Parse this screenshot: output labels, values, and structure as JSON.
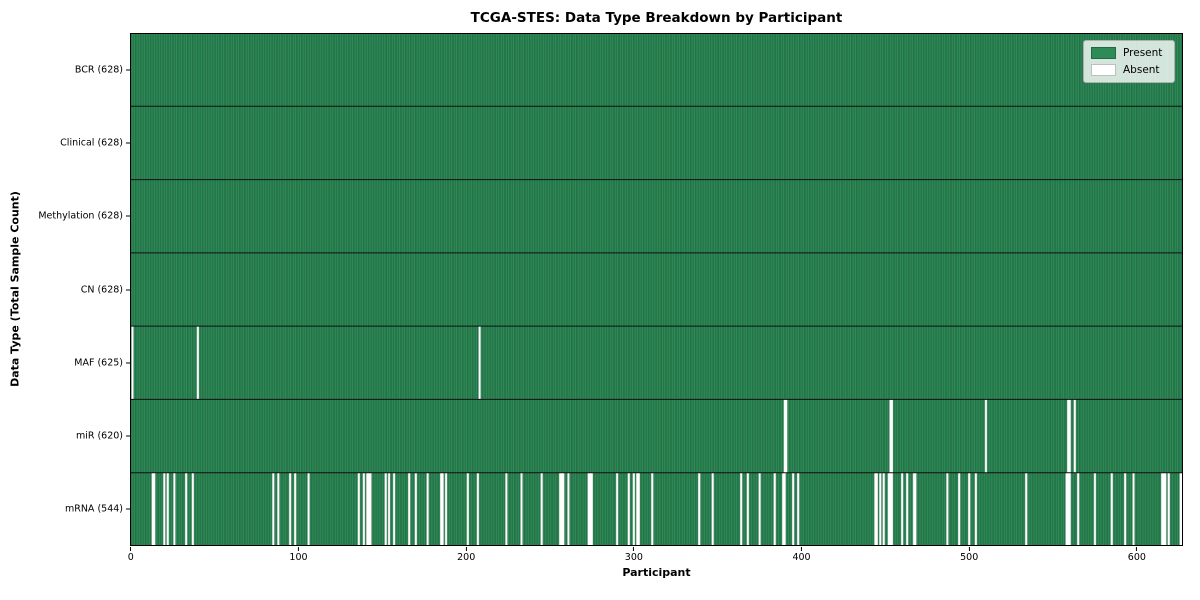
{
  "chart_data": {
    "type": "heatmap",
    "title": "TCGA-STES: Data Type Breakdown by Participant",
    "xlabel": "Participant",
    "ylabel": "Data Type (Total Sample Count)",
    "n_participants": 628,
    "x_ticks": [
      0,
      100,
      200,
      300,
      400,
      500,
      600
    ],
    "grid": false,
    "legend": {
      "position": "upper-right",
      "entries": [
        {
          "label": "Present",
          "color": "#2e8b57"
        },
        {
          "label": "Absent",
          "color": "#ffffff"
        }
      ]
    },
    "colors": {
      "present": "#2e8b57",
      "present_edge": "#1b5e3b",
      "absent": "#ffffff",
      "absent_edge": "#c8c8c8",
      "row_separator": "#111111",
      "plot_border": "#000000"
    },
    "rows": [
      {
        "name": "BCR",
        "total": 628,
        "display": "BCR (628)",
        "absent": []
      },
      {
        "name": "Clinical",
        "total": 628,
        "display": "Clinical (628)",
        "absent": []
      },
      {
        "name": "Methylation",
        "total": 628,
        "display": "Methylation (628)",
        "absent": []
      },
      {
        "name": "CN",
        "total": 628,
        "display": "CN (628)",
        "absent": []
      },
      {
        "name": "MAF",
        "total": 625,
        "display": "MAF (625)",
        "absent": [
          1,
          40,
          208
        ]
      },
      {
        "name": "miR",
        "total": 620,
        "display": "miR (620)",
        "absent": [
          390,
          391,
          453,
          454,
          510,
          559,
          560,
          563
        ]
      },
      {
        "name": "mRNA",
        "total": 544,
        "display": "mRNA (544)",
        "absent": [
          13,
          14,
          20,
          22,
          26,
          33,
          37,
          85,
          88,
          95,
          98,
          106,
          136,
          139,
          141,
          142,
          143,
          152,
          154,
          157,
          166,
          170,
          177,
          185,
          186,
          188,
          201,
          207,
          224,
          233,
          245,
          256,
          257,
          258,
          261,
          273,
          274,
          275,
          290,
          297,
          300,
          302,
          303,
          311,
          339,
          347,
          364,
          368,
          375,
          384,
          389,
          390,
          395,
          398,
          444,
          445,
          447,
          449,
          452,
          453,
          454,
          460,
          463,
          467,
          468,
          487,
          494,
          500,
          504,
          534,
          558,
          559,
          560,
          565,
          575,
          585,
          593,
          598,
          615,
          616,
          617,
          619,
          626,
          627
        ]
      }
    ]
  }
}
